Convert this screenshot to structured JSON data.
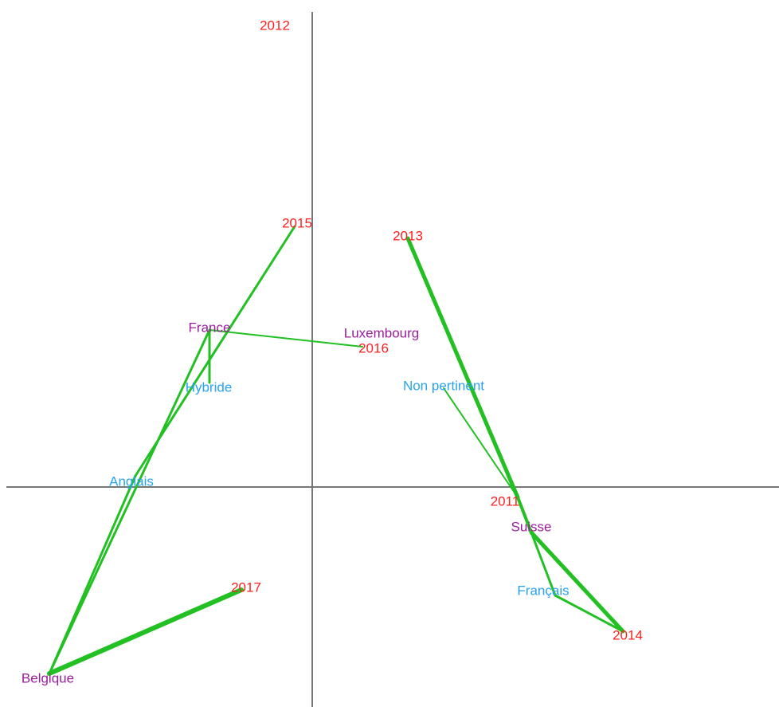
{
  "nodes": [
    {
      "label": "2012",
      "color": "#ff1f1f"
    },
    {
      "label": "2015",
      "color": "#ff1f1f"
    },
    {
      "label": "2013",
      "color": "#ff1f1f"
    },
    {
      "label": "France",
      "color": "#9c1c9c"
    },
    {
      "label": "Luxembourg",
      "color": "#9c1c9c"
    },
    {
      "label": "2016",
      "color": "#ff1f1f"
    },
    {
      "label": "Hybride",
      "color": "#27a3f0"
    },
    {
      "label": "Non pertinent",
      "color": "#27a3f0"
    },
    {
      "label": "Anglais",
      "color": "#27a3f0"
    },
    {
      "label": "2011",
      "color": "#ff1f1f"
    },
    {
      "label": "Suisse",
      "color": "#9c1c9c"
    },
    {
      "label": "2017",
      "color": "#ff1f1f"
    },
    {
      "label": "Français",
      "color": "#27a3f0"
    },
    {
      "label": "2014",
      "color": "#ff1f1f"
    },
    {
      "label": "Belgique",
      "color": "#9c1c9c"
    }
  ]
}
